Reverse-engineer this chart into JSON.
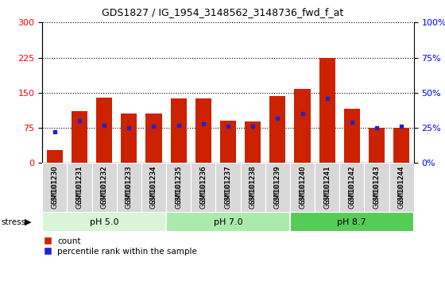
{
  "title": "GDS1827 / IG_1954_3148562_3148736_fwd_f_at",
  "samples": [
    "GSM101230",
    "GSM101231",
    "GSM101232",
    "GSM101233",
    "GSM101234",
    "GSM101235",
    "GSM101236",
    "GSM101237",
    "GSM101238",
    "GSM101239",
    "GSM101240",
    "GSM101241",
    "GSM101242",
    "GSM101243",
    "GSM101244"
  ],
  "count_values": [
    28,
    110,
    140,
    105,
    105,
    137,
    138,
    90,
    88,
    143,
    158,
    225,
    115,
    75,
    75
  ],
  "percentile_values": [
    22,
    30,
    27,
    25,
    26,
    27,
    28,
    26,
    26,
    32,
    35,
    46,
    29,
    25,
    26
  ],
  "groups": [
    {
      "label": "pH 5.0",
      "start": 0,
      "end": 5,
      "color": "#d8f5d8"
    },
    {
      "label": "pH 7.0",
      "start": 5,
      "end": 10,
      "color": "#aaeaaa"
    },
    {
      "label": "pH 8.7",
      "start": 10,
      "end": 15,
      "color": "#55cc55"
    }
  ],
  "bar_color": "#cc2200",
  "blue_color": "#2222cc",
  "left_ylim": [
    0,
    300
  ],
  "right_ylim": [
    0,
    100
  ],
  "left_yticks": [
    0,
    75,
    150,
    225,
    300
  ],
  "right_yticks": [
    0,
    25,
    50,
    75,
    100
  ],
  "right_yticklabels": [
    "0%",
    "25%",
    "50%",
    "75%",
    "100%"
  ],
  "stress_label": "stress",
  "legend_count": "count",
  "legend_pct": "percentile rank within the sample",
  "xtick_bg": "#d8d8d8"
}
